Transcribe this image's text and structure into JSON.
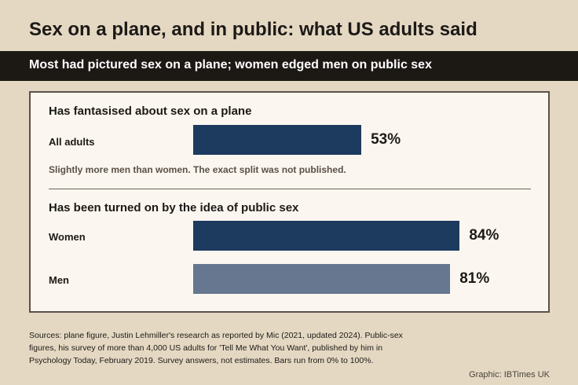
{
  "title": "Sex on a plane, and in public: what US adults said",
  "subtitle": "Most had pictured sex on a plane; women edged men on public sex",
  "chart_data": [
    {
      "type": "bar",
      "orientation": "horizontal",
      "title": "Has fantasised about sex on a plane",
      "categories": [
        "All adults"
      ],
      "values": [
        53
      ],
      "value_labels": [
        "53%"
      ],
      "xlim": [
        0,
        100
      ],
      "colors": [
        "#1d3a5f"
      ],
      "note": "Slightly more men than women. The exact split was not published."
    },
    {
      "type": "bar",
      "orientation": "horizontal",
      "title": "Has been turned on by the idea of public sex",
      "categories": [
        "Women",
        "Men"
      ],
      "values": [
        84,
        81
      ],
      "value_labels": [
        "84%",
        "81%"
      ],
      "xlim": [
        0,
        100
      ],
      "colors": [
        "#1d3a5f",
        "#66778f"
      ]
    }
  ],
  "sources": "Sources: plane figure, Justin Lehmiller's research as reported by Mic (2021, updated 2024). Public-sex figures, his survey of more than 4,000 US adults for 'Tell Me What You Want', published by him in Psychology Today, February 2019. Survey answers, not estimates. Bars run from 0% to 100%.",
  "credit": "Graphic: IBTimes UK"
}
